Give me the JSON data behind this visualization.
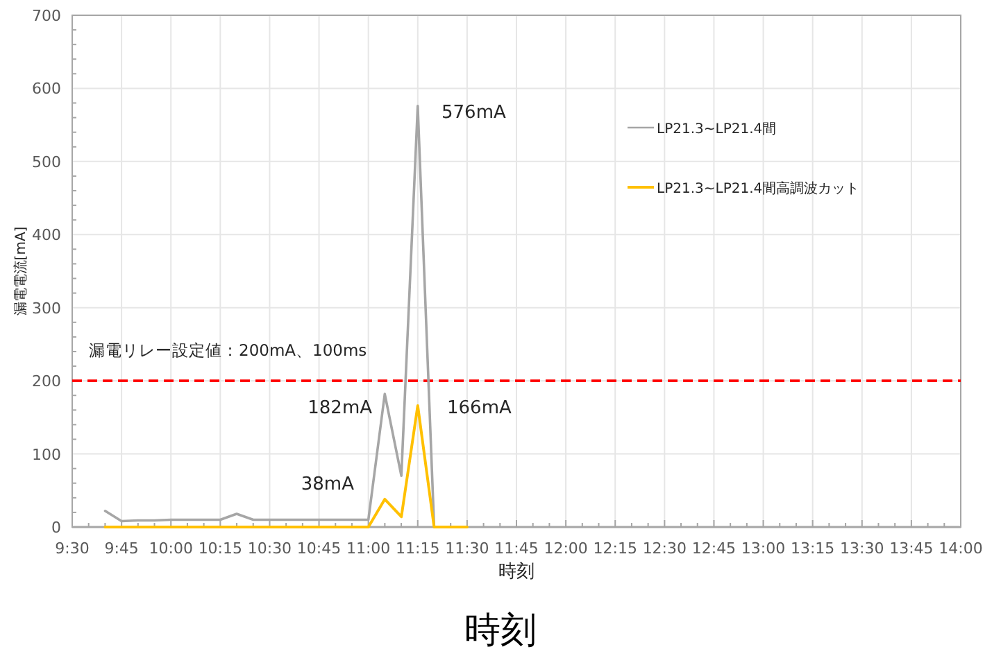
{
  "chart_data": {
    "type": "line",
    "xlabel": "時刻",
    "ylabel": "漏電電流[mA]",
    "xlim": [
      9.5,
      14
    ],
    "ylim": [
      0,
      700
    ],
    "xticks": [
      {
        "value": 9.5,
        "label": "9:30"
      },
      {
        "value": 9.75,
        "label": "9:45"
      },
      {
        "value": 10,
        "label": "10:00"
      },
      {
        "value": 10.25,
        "label": "10:15"
      },
      {
        "value": 10.5,
        "label": "10:30"
      },
      {
        "value": 10.75,
        "label": "10:45"
      },
      {
        "value": 11,
        "label": "11:00"
      },
      {
        "value": 11.25,
        "label": "11:15"
      },
      {
        "value": 11.5,
        "label": "11:30"
      },
      {
        "value": 11.75,
        "label": "11:45"
      },
      {
        "value": 12,
        "label": "12:00"
      },
      {
        "value": 12.25,
        "label": "12:15"
      },
      {
        "value": 12.5,
        "label": "12:30"
      },
      {
        "value": 12.75,
        "label": "12:45"
      },
      {
        "value": 13,
        "label": "13:00"
      },
      {
        "value": 13.25,
        "label": "13:15"
      },
      {
        "value": 13.5,
        "label": "13:30"
      },
      {
        "value": 13.75,
        "label": "13:45"
      },
      {
        "value": 14,
        "label": "14:00"
      }
    ],
    "yticks": [
      0,
      100,
      200,
      300,
      400,
      500,
      600,
      700
    ],
    "grid": true,
    "legend": "top right",
    "series": [
      {
        "name": "LP21.3~LP21.4間",
        "color": "#a6a6a6",
        "x": [
          9.667,
          9.75,
          9.833,
          9.917,
          10,
          10.083,
          10.167,
          10.25,
          10.333,
          10.417,
          10.5,
          10.583,
          10.667,
          10.75,
          10.833,
          10.917,
          11,
          11.083,
          11.167,
          11.25,
          11.333
        ],
        "values": [
          22,
          8,
          9,
          9,
          10,
          10,
          10,
          10,
          18,
          10,
          10,
          10,
          10,
          10,
          10,
          10,
          10,
          182,
          70,
          576,
          0
        ]
      },
      {
        "name": "LP21.3~LP21.4間高調波カット",
        "color": "#ffc000",
        "x": [
          9.667,
          9.75,
          9.833,
          9.917,
          10,
          10.083,
          10.167,
          10.25,
          10.333,
          10.417,
          10.5,
          10.583,
          10.667,
          10.75,
          10.833,
          10.917,
          11,
          11.083,
          11.167,
          11.25,
          11.333,
          11.417,
          11.5
        ],
        "values": [
          0,
          0,
          0,
          0,
          0,
          0,
          0,
          0,
          0,
          0,
          0,
          0,
          0,
          0,
          0,
          0,
          0,
          38,
          14,
          166,
          0,
          0,
          0
        ]
      }
    ],
    "ref_lines": [
      {
        "axis": "y",
        "value": 200,
        "label": "漏電リレー設定値：200mA、100ms",
        "color": "#ff0000",
        "line_style": "dashed"
      }
    ],
    "annotations": [
      "576mA",
      "182mA",
      "38mA",
      "166mA",
      "時刻"
    ]
  }
}
